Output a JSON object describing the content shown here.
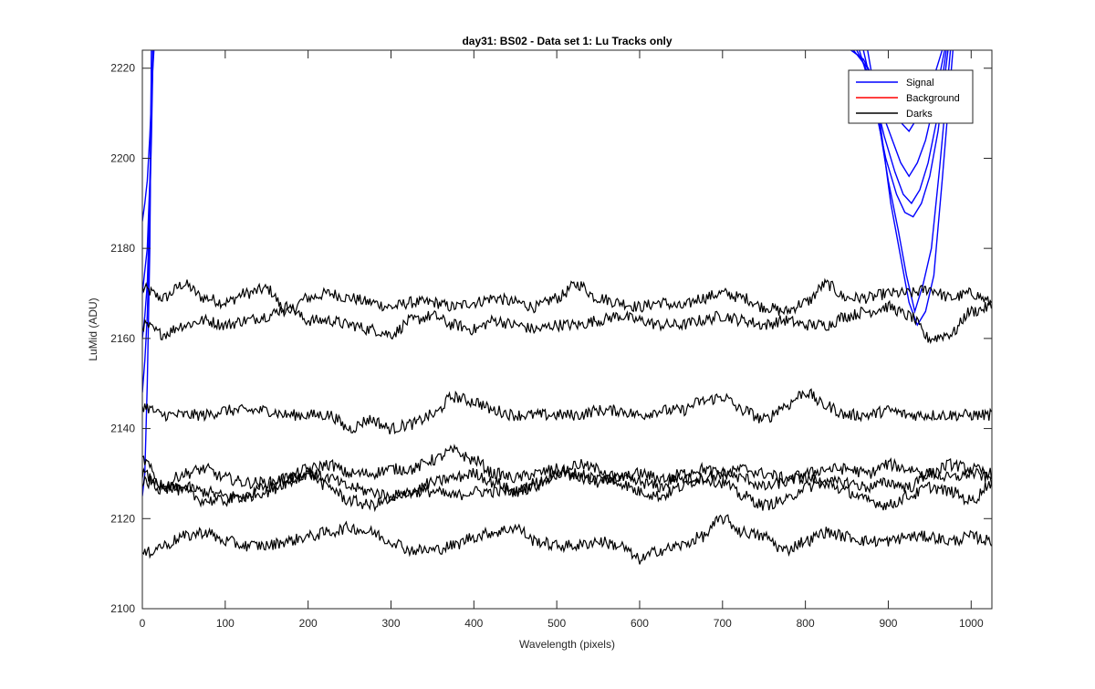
{
  "chart_data": {
    "type": "line",
    "title": "day31: BS02 - Data set 1: Lu Tracks only",
    "xlabel": "Wavelength (pixels)",
    "ylabel": "LuMid (ADU)",
    "xlim": [
      0,
      1025
    ],
    "ylim": [
      2100,
      2224
    ],
    "xticks": [
      0,
      100,
      200,
      300,
      400,
      500,
      600,
      700,
      800,
      900,
      1000
    ],
    "yticks": [
      2100,
      2120,
      2140,
      2160,
      2180,
      2200,
      2220
    ],
    "grid": false,
    "legend": {
      "placement": "top-right",
      "entries": [
        {
          "label": "Signal",
          "color": "#0000ff"
        },
        {
          "label": "Background",
          "color": "#ff0000"
        },
        {
          "label": "Darks",
          "color": "#000000"
        }
      ]
    },
    "series": [
      {
        "group": "Signal",
        "color": "#0000ff",
        "segments": [
          {
            "x": [
              0,
              3,
              6,
              9,
              12,
              14
            ],
            "y": [
              2186,
              2190,
              2195,
              2205,
              2218,
              2224
            ]
          },
          {
            "x": [
              0,
              3,
              6,
              9,
              11,
              13
            ],
            "y": [
              2170,
              2175,
              2180,
              2195,
              2210,
              2224
            ]
          },
          {
            "x": [
              0,
              3,
              6,
              9,
              11,
              13
            ],
            "y": [
              2160,
              2165,
              2172,
              2190,
              2205,
              2224
            ]
          },
          {
            "x": [
              0,
              3,
              6,
              9,
              11
            ],
            "y": [
              2148,
              2155,
              2165,
              2185,
              2224
            ]
          },
          {
            "x": [
              0,
              3,
              6,
              9,
              11
            ],
            "y": [
              2125,
              2130,
              2150,
              2180,
              2224
            ]
          }
        ]
      },
      {
        "group": "Signal",
        "color": "#0000ff",
        "segments": [
          {
            "x": [
              855,
              870,
              890,
              905,
              915,
              925,
              935,
              945,
              955,
              965
            ],
            "y": [
              2224,
              2222,
              2215,
              2212,
              2208,
              2206,
              2209,
              2213,
              2218,
              2224
            ]
          },
          {
            "x": [
              858,
              875,
              893,
              905,
              915,
              925,
              935,
              945,
              955,
              968
            ],
            "y": [
              2224,
              2220,
              2210,
              2204,
              2199,
              2196,
              2199,
              2204,
              2212,
              2224
            ]
          },
          {
            "x": [
              862,
              878,
              895,
              908,
              918,
              928,
              938,
              948,
              958,
              970
            ],
            "y": [
              2224,
              2218,
              2205,
              2197,
              2192,
              2190,
              2193,
              2199,
              2208,
              2224
            ]
          },
          {
            "x": [
              865,
              880,
              897,
              910,
              920,
              930,
              940,
              950,
              960,
              972
            ],
            "y": [
              2224,
              2215,
              2200,
              2192,
              2188,
              2187,
              2190,
              2196,
              2206,
              2224
            ]
          },
          {
            "x": [
              870,
              885,
              900,
              912,
              922,
              932,
              942,
              952,
              962,
              975
            ],
            "y": [
              2224,
              2212,
              2195,
              2184,
              2174,
              2166,
              2172,
              2180,
              2198,
              2224
            ]
          },
          {
            "x": [
              875,
              890,
              903,
              915,
              925,
              935,
              945,
              955,
              965,
              978
            ],
            "y": [
              2224,
              2208,
              2190,
              2178,
              2168,
              2163,
              2166,
              2174,
              2195,
              2224
            ]
          }
        ]
      },
      {
        "group": "Darks",
        "color": "#000000",
        "x": [
          0,
          25,
          50,
          75,
          100,
          125,
          150,
          175,
          200,
          225,
          250,
          275,
          300,
          325,
          350,
          375,
          400,
          425,
          450,
          475,
          500,
          525,
          550,
          575,
          600,
          625,
          650,
          675,
          700,
          725,
          750,
          775,
          800,
          825,
          850,
          875,
          900,
          925,
          950,
          975,
          1000,
          1025
        ],
        "y": [
          2171,
          2169,
          2172,
          2169,
          2168,
          2170,
          2171,
          2166,
          2169,
          2170,
          2169,
          2168,
          2167,
          2168,
          2168,
          2167,
          2168,
          2169,
          2168,
          2167,
          2169,
          2172,
          2169,
          2168,
          2167,
          2168,
          2167,
          2169,
          2170,
          2169,
          2167,
          2166,
          2168,
          2172,
          2169,
          2169,
          2170,
          2170,
          2171,
          2169,
          2170,
          2168
        ]
      },
      {
        "group": "Darks",
        "color": "#000000",
        "x": [
          0,
          25,
          50,
          75,
          100,
          125,
          150,
          175,
          200,
          225,
          250,
          275,
          300,
          325,
          350,
          375,
          400,
          425,
          450,
          475,
          500,
          525,
          550,
          575,
          600,
          625,
          650,
          675,
          700,
          725,
          750,
          775,
          800,
          825,
          850,
          875,
          900,
          925,
          950,
          975,
          1000,
          1025
        ],
        "y": [
          2163,
          2161,
          2163,
          2164,
          2163,
          2164,
          2165,
          2167,
          2164,
          2164,
          2163,
          2162,
          2161,
          2164,
          2165,
          2163,
          2162,
          2164,
          2163,
          2162,
          2163,
          2163,
          2164,
          2165,
          2164,
          2163,
          2163,
          2164,
          2165,
          2164,
          2163,
          2164,
          2163,
          2163,
          2165,
          2166,
          2167,
          2165,
          2160,
          2161,
          2166,
          2167
        ]
      },
      {
        "group": "Darks",
        "color": "#000000",
        "x": [
          0,
          25,
          50,
          75,
          100,
          125,
          150,
          175,
          200,
          225,
          250,
          275,
          300,
          325,
          350,
          375,
          400,
          425,
          450,
          475,
          500,
          525,
          550,
          575,
          600,
          625,
          650,
          675,
          700,
          725,
          750,
          775,
          800,
          825,
          850,
          875,
          900,
          925,
          950,
          975,
          1000,
          1025
        ],
        "y": [
          2145,
          2143,
          2143,
          2143,
          2144,
          2144,
          2144,
          2143,
          2143,
          2143,
          2140,
          2142,
          2140,
          2141,
          2143,
          2147,
          2146,
          2144,
          2143,
          2143,
          2143,
          2143,
          2144,
          2144,
          2143,
          2144,
          2144,
          2146,
          2147,
          2144,
          2142,
          2145,
          2148,
          2145,
          2143,
          2143,
          2144,
          2143,
          2143,
          2143,
          2143,
          2143
        ]
      },
      {
        "group": "Darks",
        "color": "#000000",
        "x": [
          0,
          25,
          50,
          75,
          100,
          125,
          150,
          175,
          200,
          225,
          250,
          275,
          300,
          325,
          350,
          375,
          400,
          425,
          450,
          475,
          500,
          525,
          550,
          575,
          600,
          625,
          650,
          675,
          700,
          725,
          750,
          775,
          800,
          825,
          850,
          875,
          900,
          925,
          950,
          975,
          1000,
          1025
        ],
        "y": [
          2133,
          2127,
          2130,
          2131,
          2129,
          2128,
          2128,
          2129,
          2131,
          2132,
          2130,
          2130,
          2131,
          2131,
          2133,
          2135,
          2133,
          2130,
          2129,
          2130,
          2131,
          2129,
          2128,
          2129,
          2128,
          2127,
          2130,
          2131,
          2130,
          2129,
          2127,
          2128,
          2130,
          2131,
          2131,
          2130,
          2132,
          2131,
          2130,
          2132,
          2131,
          2130
        ]
      },
      {
        "group": "Darks",
        "color": "#000000",
        "x": [
          0,
          25,
          50,
          75,
          100,
          125,
          150,
          175,
          200,
          225,
          250,
          275,
          300,
          325,
          350,
          375,
          400,
          425,
          450,
          475,
          500,
          525,
          550,
          575,
          600,
          625,
          650,
          675,
          700,
          725,
          750,
          775,
          800,
          825,
          850,
          875,
          900,
          925,
          950,
          975,
          1000,
          1025
        ],
        "y": [
          2130,
          2126,
          2127,
          2126,
          2125,
          2125,
          2126,
          2128,
          2130,
          2129,
          2127,
          2126,
          2125,
          2126,
          2126,
          2125,
          2126,
          2126,
          2126,
          2128,
          2130,
          2132,
          2131,
          2129,
          2130,
          2129,
          2129,
          2129,
          2130,
          2131,
          2130,
          2129,
          2129,
          2128,
          2128,
          2127,
          2128,
          2127,
          2130,
          2129,
          2130,
          2129
        ]
      },
      {
        "group": "Darks",
        "color": "#000000",
        "x": [
          0,
          25,
          50,
          75,
          100,
          125,
          150,
          175,
          200,
          225,
          250,
          275,
          300,
          325,
          350,
          375,
          400,
          425,
          450,
          475,
          500,
          525,
          550,
          575,
          600,
          625,
          650,
          675,
          700,
          725,
          750,
          775,
          800,
          825,
          850,
          875,
          900,
          925,
          950,
          975,
          1000,
          1025
        ],
        "y": [
          2128,
          2128,
          2126,
          2124,
          2124,
          2125,
          2127,
          2129,
          2130,
          2127,
          2124,
          2123,
          2124,
          2126,
          2128,
          2129,
          2130,
          2128,
          2126,
          2127,
          2130,
          2130,
          2129,
          2128,
          2126,
          2125,
          2127,
          2129,
          2128,
          2125,
          2123,
          2124,
          2127,
          2128,
          2126,
          2124,
          2123,
          2125,
          2127,
          2126,
          2124,
          2128
        ]
      },
      {
        "group": "Darks",
        "color": "#000000",
        "x": [
          0,
          25,
          50,
          75,
          100,
          125,
          150,
          175,
          200,
          225,
          250,
          275,
          300,
          325,
          350,
          375,
          400,
          425,
          450,
          475,
          500,
          525,
          550,
          575,
          600,
          625,
          650,
          675,
          700,
          725,
          750,
          775,
          800,
          825,
          850,
          875,
          900,
          925,
          950,
          975,
          1000,
          1025
        ],
        "y": [
          2112,
          2114,
          2116,
          2117,
          2115,
          2114,
          2114,
          2115,
          2116,
          2117,
          2118,
          2117,
          2115,
          2113,
          2113,
          2114,
          2116,
          2117,
          2118,
          2115,
          2114,
          2114,
          2115,
          2114,
          2111,
          2113,
          2114,
          2116,
          2120,
          2117,
          2116,
          2113,
          2115,
          2117,
          2116,
          2115,
          2115,
          2116,
          2116,
          2115,
          2116,
          2115
        ]
      }
    ]
  }
}
